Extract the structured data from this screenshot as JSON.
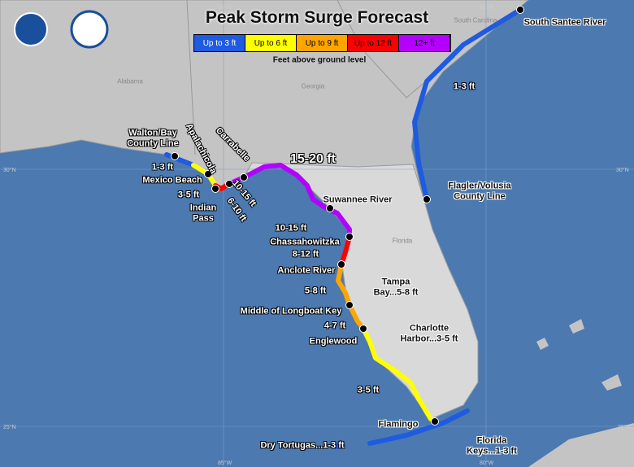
{
  "header": {
    "title": "Peak Storm Surge Forecast",
    "legend": [
      {
        "label": "Up to 3 ft",
        "color": "#1f5be0"
      },
      {
        "label": "Up to 6 ft",
        "color": "#ffff00"
      },
      {
        "label": "Up to 9 ft",
        "color": "#ffa500"
      },
      {
        "label": "Up to 12 ft",
        "color": "#ff0000"
      },
      {
        "label": "12+ ft",
        "color": "#b400ff"
      }
    ],
    "legend_note": "Feet above ground level"
  },
  "map": {
    "states": [
      "Alabama",
      "Georgia",
      "South Carolina",
      "Florida"
    ],
    "graticule": [
      "80°W",
      "85°W",
      "30°N",
      "25°N",
      "80°W",
      "85°W",
      "30°N",
      "25°N"
    ],
    "places": [
      "Walton/Bay County Line",
      "Mexico Beach",
      "Apalachicola",
      "Carrabelle",
      "Indian Pass",
      "Suwannee River",
      "Chassahowitzka",
      "Anclote River",
      "Tampa Bay...5-8 ft",
      "Middle of Longboat Key",
      "Charlotte Harbor...3-5 ft",
      "Englewood",
      "Flamingo",
      "Florida Keys...1-3 ft",
      "Dry Tortugas...1-3 ft",
      "South Santee River",
      "Flagler/Volusia County Line"
    ],
    "surge_labels": [
      "1-3 ft",
      "3-5 ft",
      "6-10 ft",
      "10-15 ft",
      "15-20 ft",
      "10-15 ft",
      "8-12 ft",
      "5-8 ft",
      "4-7 ft",
      "3-5 ft",
      "1-3 ft"
    ]
  }
}
